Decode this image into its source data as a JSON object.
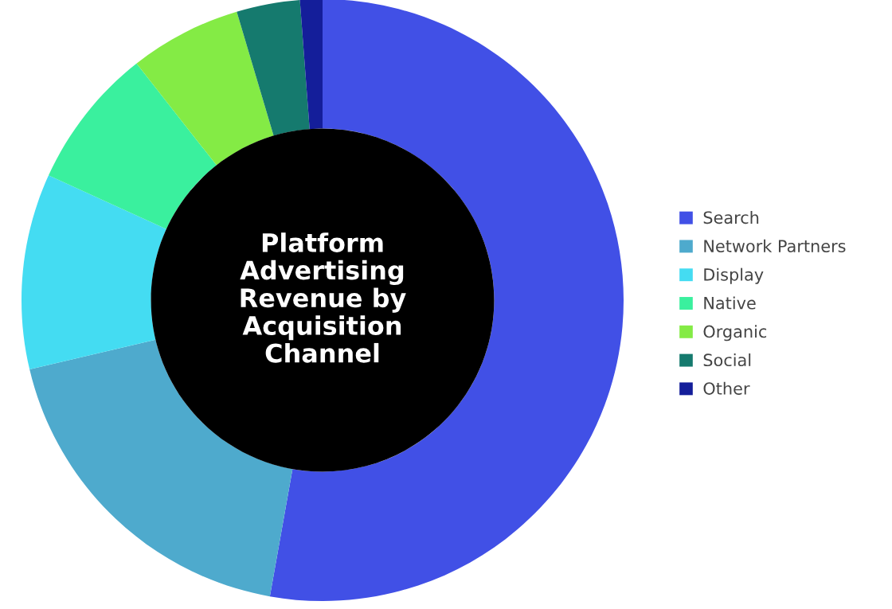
{
  "chart_data": {
    "type": "donut",
    "title": "Platform Advertising Revenue by Acquisition Channel",
    "categories": [
      "Search",
      "Network Partners",
      "Display",
      "Native",
      "Organic",
      "Social",
      "Other"
    ],
    "values": [
      52.8,
      18.5,
      10.5,
      7.6,
      6.0,
      3.4,
      1.2
    ],
    "colors": [
      "#4150e6",
      "#4eaacd",
      "#44dcf2",
      "#3af09e",
      "#84eb45",
      "#157a6e",
      "#141e9a"
    ],
    "legend": "right"
  }
}
